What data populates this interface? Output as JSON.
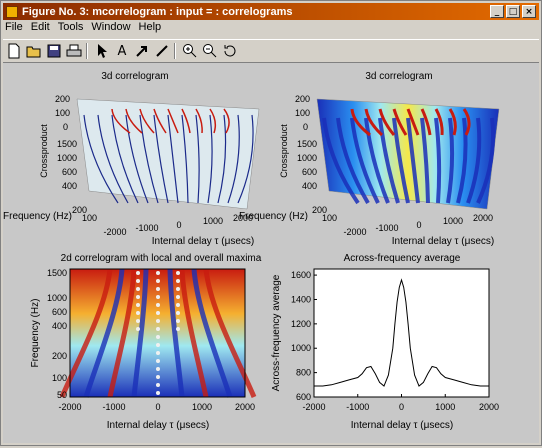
{
  "window": {
    "title": "Figure No. 3: mcorrelogram : input =    :  correlograms",
    "minimize": "_",
    "maximize": "□",
    "close": "×"
  },
  "menu": [
    "File",
    "Edit",
    "Tools",
    "Window",
    "Help"
  ],
  "toolbar": {
    "new_icon": "new-file-icon",
    "open_icon": "open-folder-icon",
    "save_icon": "save-disk-icon",
    "print_icon": "printer-icon",
    "select_icon": "pointer-arrow-icon",
    "text_icon": "text-tool-icon",
    "arrow_icon": "arrow-tool-icon",
    "line_icon": "line-tool-icon",
    "zoom_in_icon": "zoom-in-icon",
    "zoom_out_icon": "zoom-out-icon",
    "rotate_icon": "rotate-3d-icon",
    "text_glyph": "A"
  },
  "chart_data": [
    {
      "type": "surface",
      "title": "3d correlogram",
      "xlabel": "Internal delay τ (μsecs)",
      "ylabel": "Frequency (Hz)",
      "zlabel": "Crossproduct",
      "x_ticks": [
        "-2000",
        "-1000",
        "0",
        "1000",
        "2000"
      ],
      "y_ticks": [
        "100",
        "200",
        "400",
        "600",
        "1000",
        "1500"
      ],
      "z_ticks": [
        "0",
        "100",
        "200"
      ],
      "colormap": "jet",
      "style": "mesh"
    },
    {
      "type": "surface",
      "title": "3d correlogram",
      "xlabel": "Internal delay τ (μsecs)",
      "ylabel": "Frequency (Hz)",
      "zlabel": "Crossproduct",
      "x_ticks": [
        "-2000",
        "-1000",
        "0",
        "1000",
        "2000"
      ],
      "y_ticks": [
        "100",
        "200",
        "400",
        "600",
        "1000",
        "1500"
      ],
      "z_ticks": [
        "0",
        "100",
        "200"
      ],
      "colormap": "jet",
      "style": "shaded"
    },
    {
      "type": "heatmap",
      "title": "2d correlogram with local and overall maxima",
      "xlabel": "Internal delay τ (μsecs)",
      "ylabel": "Frequency (Hz)",
      "x_ticks": [
        "-2000",
        "-1000",
        "0",
        "1000",
        "2000"
      ],
      "y_ticks": [
        "50",
        "100",
        "200",
        "400",
        "600",
        "1000",
        "1500"
      ],
      "xlim": [
        -2000,
        2000
      ],
      "colormap": "jet"
    },
    {
      "type": "line",
      "title": "Across-frequency average",
      "xlabel": "Internal delay τ (μsecs)",
      "ylabel": "Across-frequency average",
      "x_ticks": [
        "-2000",
        "-1000",
        "0",
        "1000",
        "2000"
      ],
      "y_ticks": [
        "600",
        "800",
        "1000",
        "1200",
        "1400",
        "1600"
      ],
      "xlim": [
        -2000,
        2000
      ],
      "ylim": [
        600,
        1650
      ],
      "x": [
        -2000,
        -1800,
        -1600,
        -1400,
        -1200,
        -1000,
        -900,
        -800,
        -700,
        -600,
        -500,
        -400,
        -300,
        -200,
        -150,
        -100,
        -50,
        0,
        50,
        100,
        150,
        200,
        300,
        400,
        500,
        600,
        700,
        800,
        900,
        1000,
        1200,
        1400,
        1600,
        1800,
        2000
      ],
      "values": [
        690,
        690,
        700,
        720,
        740,
        760,
        790,
        840,
        850,
        790,
        720,
        690,
        780,
        1000,
        1200,
        1380,
        1500,
        1560,
        1500,
        1380,
        1200,
        1000,
        780,
        690,
        720,
        790,
        850,
        840,
        790,
        760,
        740,
        720,
        700,
        690,
        690
      ]
    }
  ]
}
